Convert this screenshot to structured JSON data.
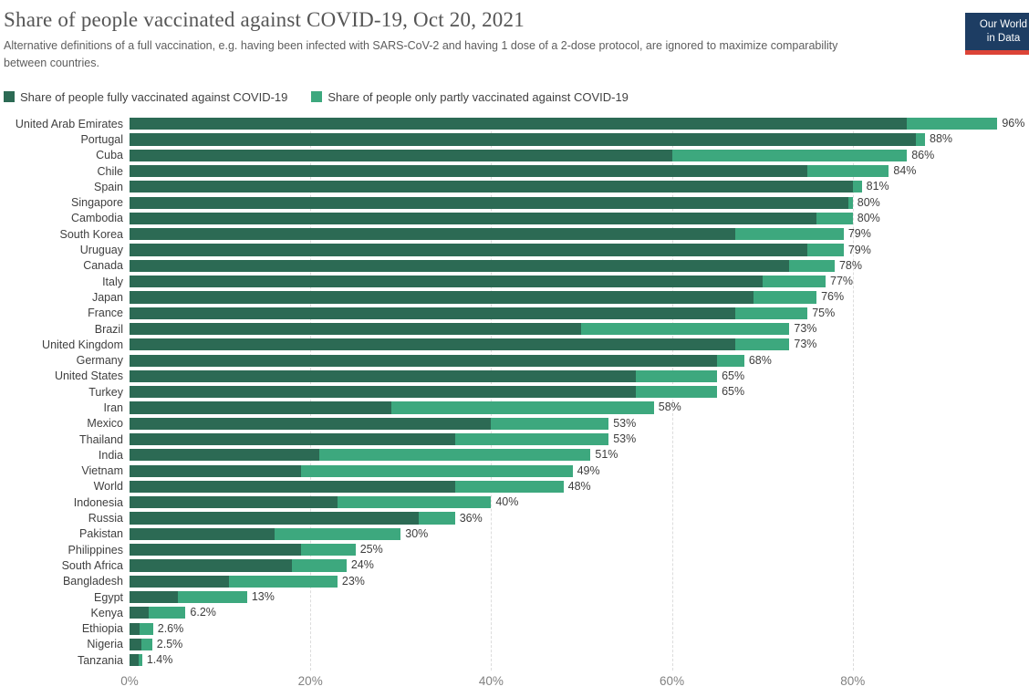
{
  "header": {
    "title": "Share of people vaccinated against COVID-19, Oct 20, 2021",
    "subtitle": "Alternative definitions of a full vaccination, e.g. having been infected with SARS-CoV-2 and having 1 dose of a 2-dose protocol, are ignored to maximize comparability between countries."
  },
  "logo": {
    "line1": "Our World",
    "line2": "in Data",
    "bg_color": "#1d3d63",
    "stripe_color": "#dc4437"
  },
  "legend": [
    {
      "label": "Share of people fully vaccinated against COVID-19",
      "color": "#2c6a54"
    },
    {
      "label": "Share of people only partly vaccinated against COVID-19",
      "color": "#3da87e"
    }
  ],
  "chart_data": {
    "type": "bar",
    "orientation": "horizontal",
    "stacked": true,
    "title": "Share of people vaccinated against COVID-19, Oct 20, 2021",
    "xlabel": "",
    "ylabel": "",
    "xlim": [
      0,
      99.5
    ],
    "grid": "dashed-vertical",
    "legend_position": "top",
    "categories": [
      "United Arab Emirates",
      "Portugal",
      "Cuba",
      "Chile",
      "Spain",
      "Singapore",
      "Cambodia",
      "South Korea",
      "Uruguay",
      "Canada",
      "Italy",
      "Japan",
      "France",
      "Brazil",
      "United Kingdom",
      "Germany",
      "United States",
      "Turkey",
      "Iran",
      "Mexico",
      "Thailand",
      "India",
      "Vietnam",
      "World",
      "Indonesia",
      "Russia",
      "Pakistan",
      "Philippines",
      "South Africa",
      "Bangladesh",
      "Egypt",
      "Kenya",
      "Ethiopia",
      "Nigeria",
      "Tanzania"
    ],
    "series": [
      {
        "name": "Share of people fully vaccinated against COVID-19",
        "color": "#2c6a54",
        "values": [
          86,
          87,
          60,
          75,
          80,
          79.5,
          76,
          67,
          75,
          73,
          70,
          69,
          67,
          50,
          67,
          65,
          56,
          56,
          29,
          40,
          36,
          21,
          19,
          36,
          23,
          32,
          16,
          19,
          18,
          11,
          5.3,
          2.1,
          1.1,
          1.3,
          1.0
        ]
      },
      {
        "name": "Share of people only partly vaccinated against COVID-19",
        "color": "#3da87e",
        "values": [
          10,
          1,
          26,
          9,
          1,
          0.5,
          4,
          12,
          4,
          5,
          7,
          7,
          8,
          23,
          6,
          3,
          9,
          9,
          29,
          13,
          17,
          30,
          30,
          12,
          17,
          4,
          14,
          6,
          6,
          12,
          7.7,
          4.1,
          1.5,
          1.2,
          0.4
        ]
      }
    ],
    "totals": [
      96,
      88,
      86,
      84,
      81,
      80,
      80,
      79,
      79,
      78,
      77,
      76,
      75,
      73,
      73,
      68,
      65,
      65,
      58,
      53,
      53,
      51,
      49,
      48,
      40,
      36,
      30,
      25,
      24,
      23,
      13,
      6.2,
      2.6,
      2.5,
      1.4
    ],
    "total_labels": [
      "96%",
      "88%",
      "86%",
      "84%",
      "81%",
      "80%",
      "80%",
      "79%",
      "79%",
      "78%",
      "77%",
      "76%",
      "75%",
      "73%",
      "73%",
      "68%",
      "65%",
      "65%",
      "58%",
      "53%",
      "53%",
      "51%",
      "49%",
      "48%",
      "40%",
      "36%",
      "30%",
      "25%",
      "24%",
      "23%",
      "13%",
      "6.2%",
      "2.6%",
      "2.5%",
      "1.4%"
    ],
    "x_ticks": [
      "0%",
      "20%",
      "40%",
      "60%",
      "80%"
    ],
    "x_tick_values": [
      0,
      20,
      40,
      60,
      80
    ]
  }
}
